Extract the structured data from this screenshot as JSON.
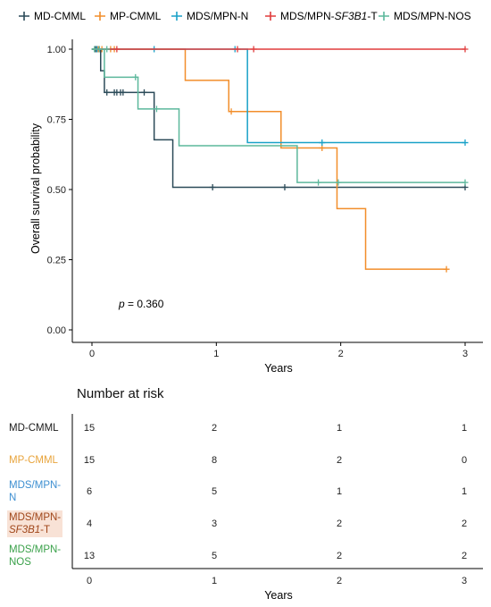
{
  "chart_data": {
    "type": "line",
    "subtype": "kaplan-meier",
    "ylabel": "Overall survival probability",
    "xlabel": "Years",
    "xlim": [
      0,
      3
    ],
    "ylim": [
      0,
      1
    ],
    "xticks": [
      "0",
      "1",
      "2",
      "3"
    ],
    "yticks": [
      "0.00",
      "0.25",
      "0.50",
      "0.75",
      "1.00"
    ],
    "grid": false,
    "legend_position": "top",
    "pvalue": {
      "label": "p",
      "text": " = 0.360"
    },
    "series": [
      {
        "name": "MD-CMML",
        "name_parts": [
          {
            "t": "MD-CMML",
            "i": false
          }
        ],
        "color": "#2b4a58",
        "steps": [
          [
            0,
            1.0
          ],
          [
            0.07,
            0.923
          ],
          [
            0.1,
            0.846
          ],
          [
            0.5,
            0.677
          ],
          [
            0.65,
            0.508
          ],
          [
            3.0,
            0.508
          ]
        ],
        "censors": [
          [
            0.03,
            1.0
          ],
          [
            0.05,
            1.0
          ],
          [
            0.12,
            0.846
          ],
          [
            0.18,
            0.846
          ],
          [
            0.2,
            0.846
          ],
          [
            0.23,
            0.846
          ],
          [
            0.25,
            0.846
          ],
          [
            0.42,
            0.846
          ],
          [
            0.97,
            0.508
          ],
          [
            1.55,
            0.508
          ],
          [
            3.0,
            0.508
          ]
        ]
      },
      {
        "name": "MP-CMML",
        "name_parts": [
          {
            "t": "MP-CMML",
            "i": false
          }
        ],
        "color": "#f28e2b",
        "steps": [
          [
            0,
            1.0
          ],
          [
            0.75,
            0.889
          ],
          [
            1.1,
            0.778
          ],
          [
            1.52,
            0.648
          ],
          [
            1.97,
            0.432
          ],
          [
            2.2,
            0.216
          ],
          [
            2.85,
            0.216
          ]
        ],
        "censors": [
          [
            0.05,
            1.0
          ],
          [
            0.08,
            1.0
          ],
          [
            0.15,
            1.0
          ],
          [
            0.18,
            1.0
          ],
          [
            1.12,
            0.778
          ],
          [
            1.85,
            0.648
          ],
          [
            2.85,
            0.216
          ]
        ]
      },
      {
        "name": "MDS/MPN-N",
        "name_parts": [
          {
            "t": "MDS/MPN-N",
            "i": false
          }
        ],
        "color": "#1aa1c8",
        "steps": [
          [
            0,
            1.0
          ],
          [
            1.25,
            0.667
          ],
          [
            3.0,
            0.667
          ]
        ],
        "censors": [
          [
            0.04,
            1.0
          ],
          [
            0.5,
            1.0
          ],
          [
            1.15,
            1.0
          ],
          [
            1.85,
            0.667
          ],
          [
            3.0,
            0.667
          ]
        ]
      },
      {
        "name": "MDS/MPN-SF3B1-T",
        "name_parts": [
          {
            "t": "MDS/MPN-",
            "i": false
          },
          {
            "t": "SF3B1",
            "i": true
          },
          {
            "t": "-T",
            "i": false
          }
        ],
        "color": "#e03c3c",
        "steps": [
          [
            0,
            1.0
          ],
          [
            3.0,
            1.0
          ]
        ],
        "censors": [
          [
            0.06,
            1.0
          ],
          [
            0.2,
            1.0
          ],
          [
            1.17,
            1.0
          ],
          [
            1.3,
            1.0
          ],
          [
            3.0,
            1.0
          ]
        ]
      },
      {
        "name": "MDS/MPN-NOS",
        "name_parts": [
          {
            "t": "MDS/MPN-NOS",
            "i": false
          }
        ],
        "color": "#5cb89c",
        "steps": [
          [
            0,
            1.0
          ],
          [
            0.1,
            0.9
          ],
          [
            0.37,
            0.787
          ],
          [
            0.7,
            0.656
          ],
          [
            1.65,
            0.525
          ],
          [
            3.0,
            0.525
          ]
        ],
        "censors": [
          [
            0.02,
            1.0
          ],
          [
            0.06,
            1.0
          ],
          [
            0.12,
            1.0
          ],
          [
            0.35,
            0.9
          ],
          [
            0.52,
            0.787
          ],
          [
            1.82,
            0.525
          ],
          [
            1.98,
            0.525
          ],
          [
            3.0,
            0.525
          ]
        ]
      }
    ]
  },
  "risk_table": {
    "title": "Number at risk",
    "xlabel": "Years",
    "xticks": [
      "0",
      "1",
      "2",
      "3"
    ],
    "rows": [
      {
        "label_lines": [
          [
            {
              "t": "MD-CMML",
              "i": false
            }
          ]
        ],
        "color": "#1a1a1a",
        "values": [
          "15",
          "2",
          "1",
          "1"
        ]
      },
      {
        "label_lines": [
          [
            {
              "t": "MP-CMML",
              "i": false
            }
          ]
        ],
        "color": "#e8a43c",
        "values": [
          "15",
          "8",
          "2",
          "0"
        ]
      },
      {
        "label_lines": [
          [
            {
              "t": "MDS/MPN-",
              "i": false
            }
          ],
          [
            {
              "t": "N",
              "i": false
            }
          ]
        ],
        "color": "#3d8fd1",
        "values": [
          "6",
          "5",
          "1",
          "1"
        ]
      },
      {
        "label_lines": [
          [
            {
              "t": "MDS/MPN-",
              "i": false
            }
          ],
          [
            {
              "t": "SF3B1",
              "i": true
            },
            {
              "t": "-T",
              "i": false
            }
          ]
        ],
        "color": "#a0461a",
        "highlight": "#f8e2d6",
        "values": [
          "4",
          "3",
          "2",
          "2"
        ]
      },
      {
        "label_lines": [
          [
            {
              "t": "MDS/MPN-",
              "i": false
            }
          ],
          [
            {
              "t": "NOS",
              "i": false
            }
          ]
        ],
        "color": "#3aa14a",
        "values": [
          "13",
          "5",
          "2",
          "2"
        ]
      }
    ]
  }
}
